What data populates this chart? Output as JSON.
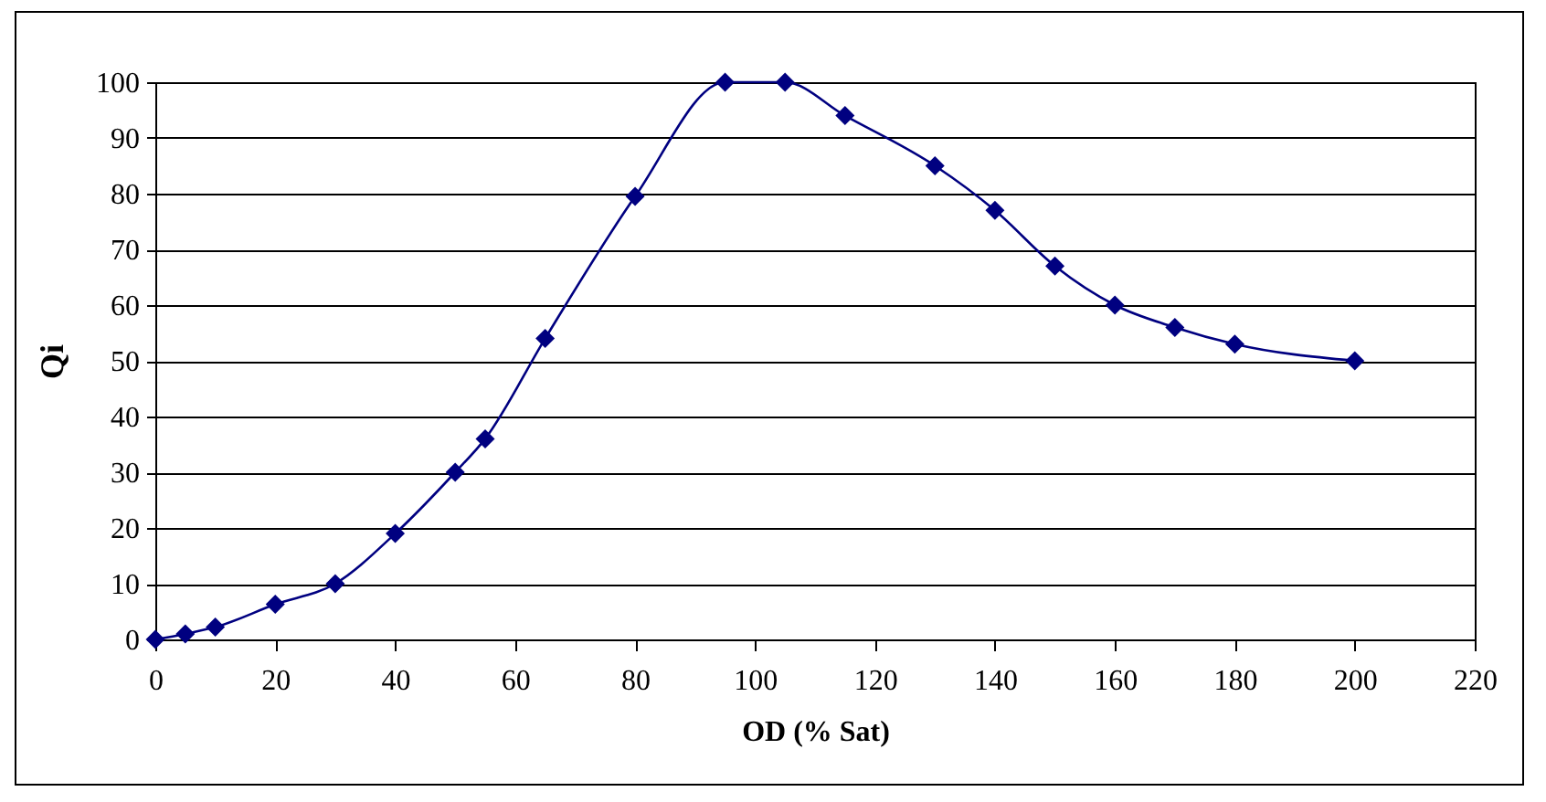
{
  "chart_data": {
    "type": "line",
    "xlabel": "OD (% Sat)",
    "ylabel": "Qi",
    "x": [
      0,
      5,
      10,
      20,
      30,
      40,
      50,
      55,
      65,
      80,
      95,
      105,
      115,
      130,
      140,
      150,
      160,
      170,
      180,
      200
    ],
    "series": [
      {
        "color": "#000080",
        "values": [
          0,
          1,
          2.2,
          6.3,
          10,
          19,
          30,
          36,
          54,
          79.5,
          100,
          100,
          94,
          85,
          77,
          67,
          60,
          56,
          53,
          50
        ]
      }
    ],
    "xlim": [
      0,
      220
    ],
    "xticks": [
      0,
      20,
      40,
      60,
      80,
      100,
      120,
      140,
      160,
      180,
      200,
      220
    ],
    "ylim": [
      0,
      100
    ],
    "yticks": [
      0,
      10,
      20,
      30,
      40,
      50,
      60,
      70,
      80,
      90,
      100
    ],
    "grid": "y",
    "marker": "diamond",
    "line_style": "solid"
  }
}
